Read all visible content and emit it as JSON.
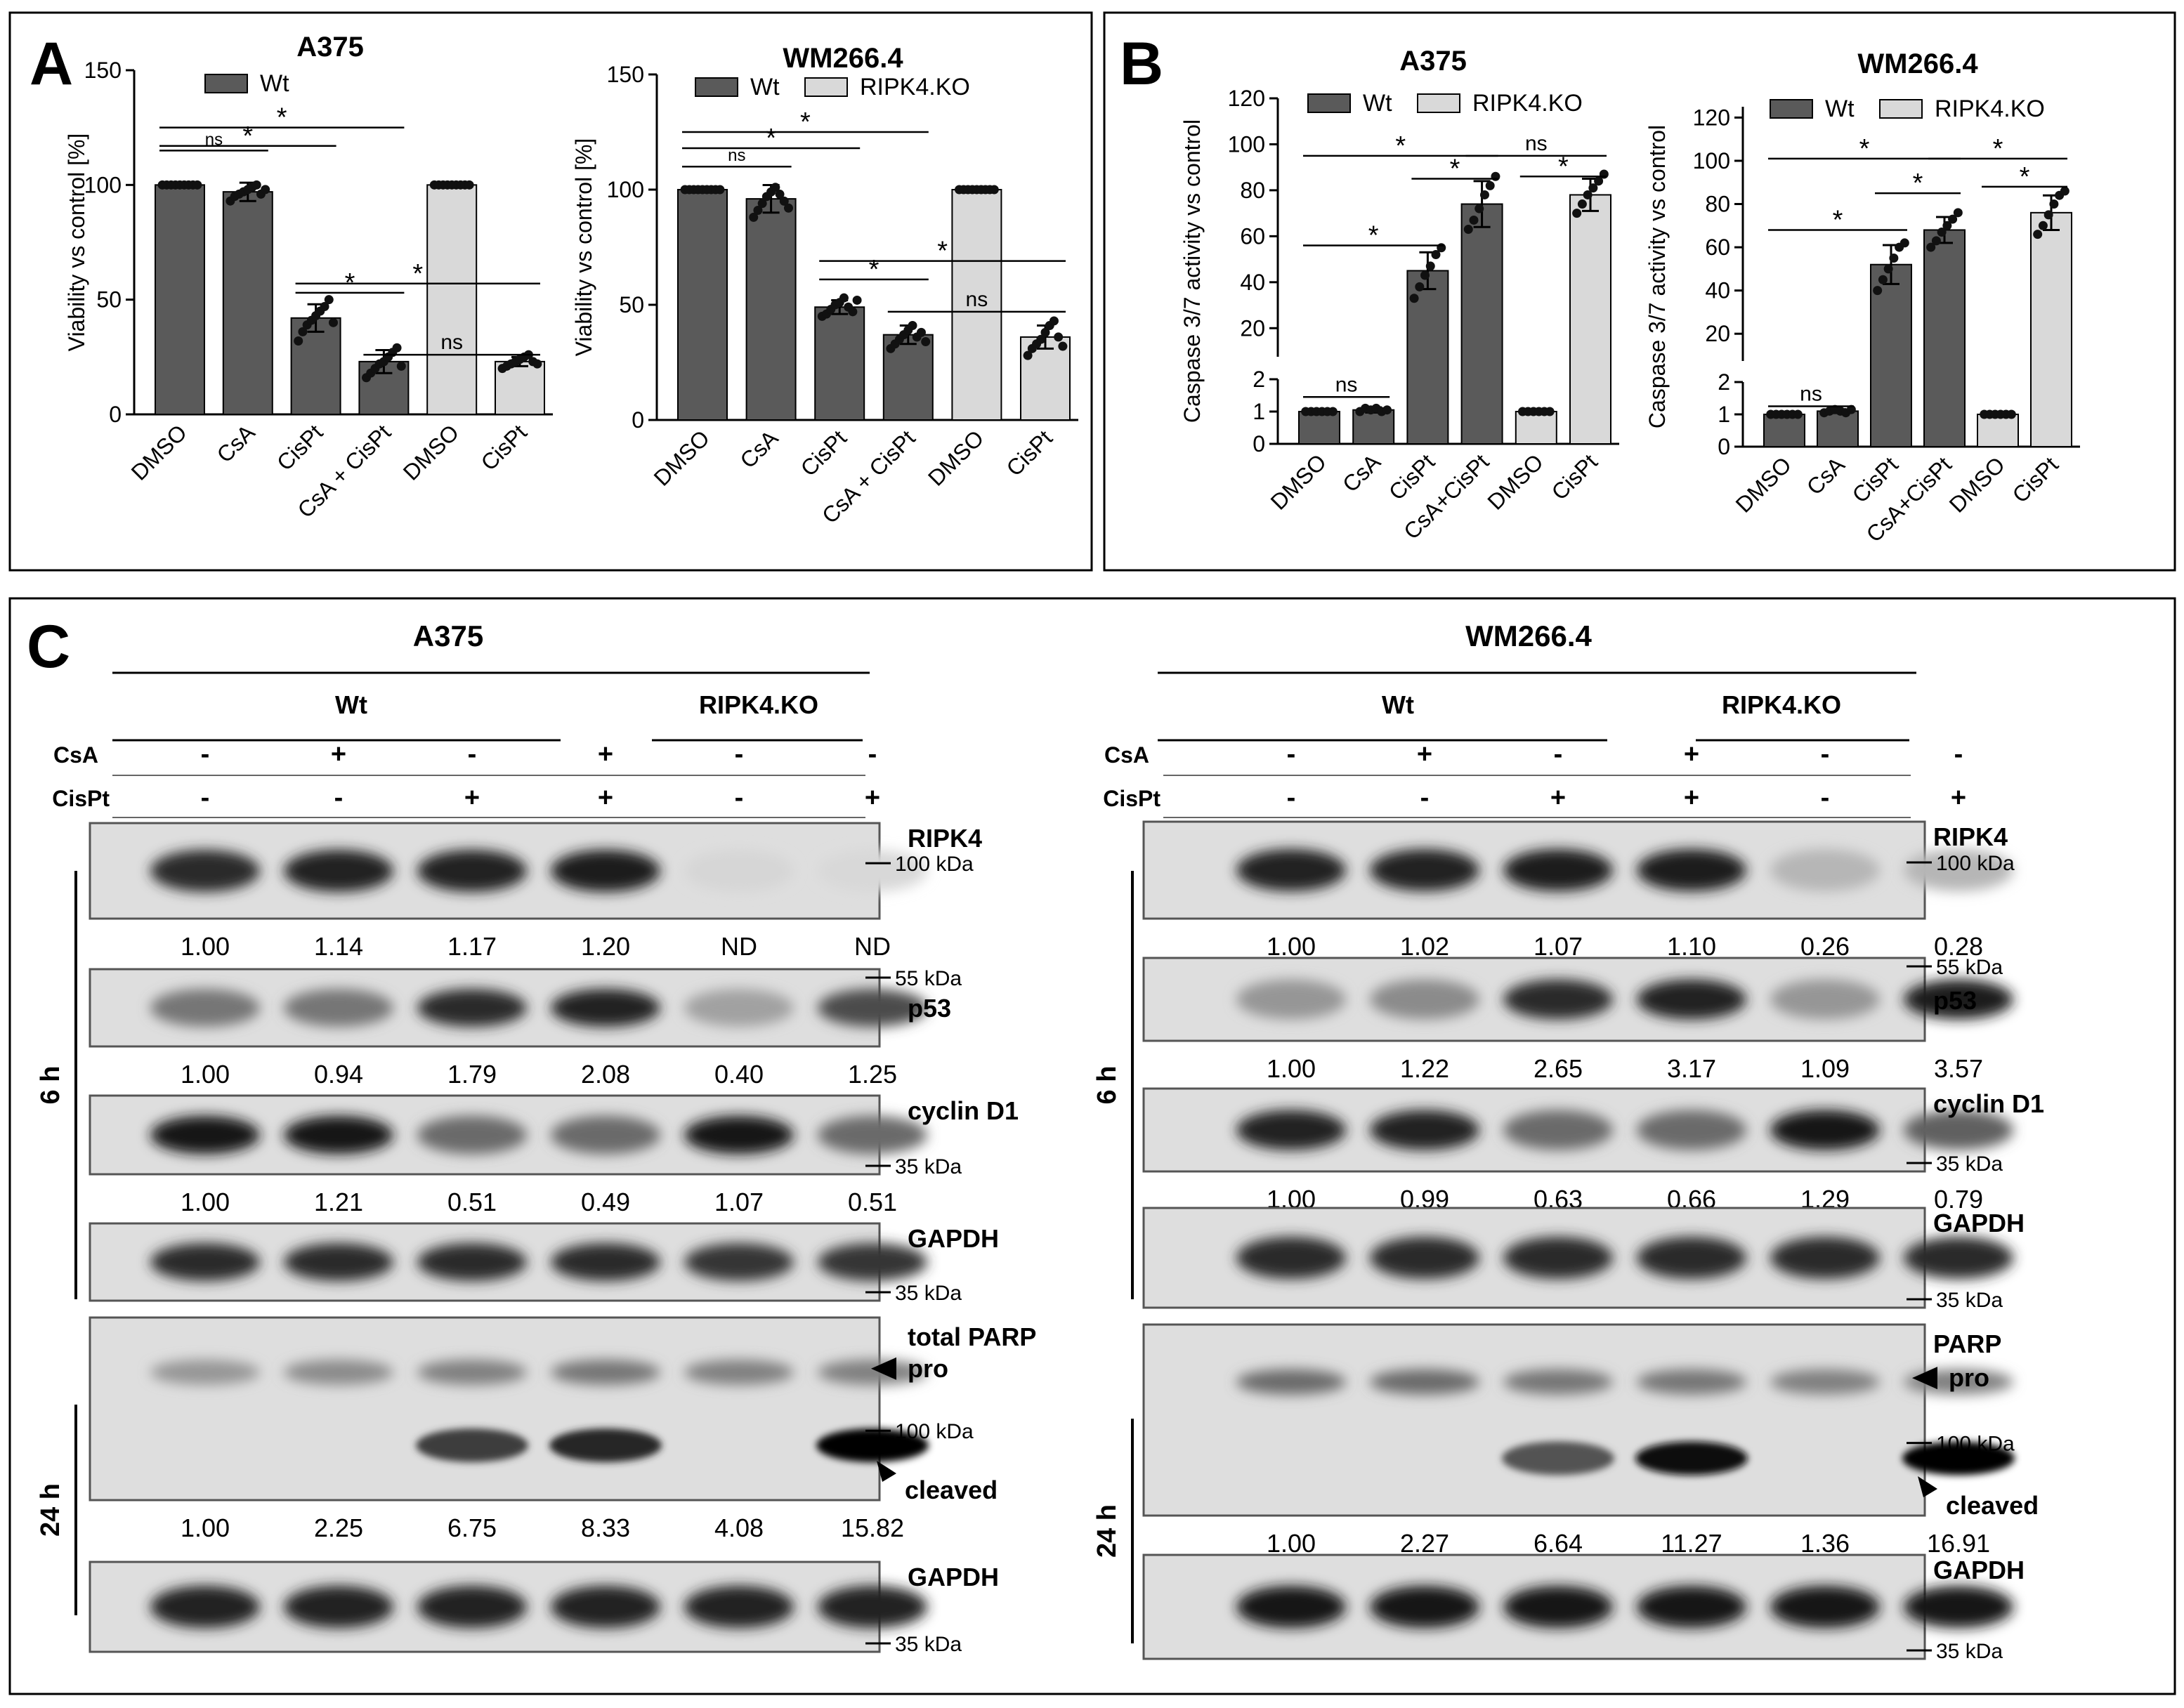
{
  "colors": {
    "wt": "#5a5a5a",
    "ko": "#d9d9d9",
    "dots": "#111111",
    "frame": "#000000",
    "blot_bg": "#dedede"
  },
  "panels": {
    "A": "A",
    "B": "B",
    "C": "C"
  },
  "chart_data": [
    {
      "id": "A1",
      "type": "bar",
      "title": "A375",
      "xlabel": "",
      "ylabel": "Viability vs control [%]",
      "ylim": [
        0,
        150
      ],
      "yticks": [
        0,
        50,
        100,
        150
      ],
      "grid": false,
      "legend_position": "top",
      "legend": [
        {
          "name": "Wt",
          "group": "wt"
        }
      ],
      "categories": [
        "DMSO",
        "CsA",
        "CisPt",
        "CsA + CisPt",
        "DMSO",
        "CisPt"
      ],
      "groups": [
        "wt",
        "wt",
        "wt",
        "wt",
        "ko",
        "ko"
      ],
      "values": [
        100,
        97,
        42,
        23,
        100,
        23
      ],
      "errors": [
        0,
        4,
        6,
        5,
        0,
        2
      ],
      "points": [
        [
          100,
          100,
          100,
          100,
          100,
          100,
          100,
          100,
          100
        ],
        [
          93,
          95,
          96,
          97,
          98,
          99,
          100,
          96,
          98
        ],
        [
          32,
          36,
          39,
          41,
          43,
          45,
          47,
          50,
          40
        ],
        [
          16,
          18,
          20,
          22,
          23,
          25,
          27,
          29,
          21
        ],
        [
          100,
          100,
          100,
          100,
          100,
          100,
          100,
          100,
          100
        ],
        [
          20,
          21,
          22,
          23,
          24,
          25,
          26,
          23,
          22
        ]
      ],
      "significance": [
        {
          "from": 0,
          "to": 1,
          "label": "ns",
          "y": 115
        },
        {
          "from": 0,
          "to": 2,
          "label": "*",
          "y": 117
        },
        {
          "from": 0,
          "to": 3,
          "label": "*",
          "y": 125
        },
        {
          "from": 2,
          "to": 3,
          "label": "*",
          "y": 53
        },
        {
          "from": 2,
          "to": 5,
          "label": "*",
          "y": 57
        },
        {
          "from": 3,
          "to": 5,
          "label": "ns",
          "y": 26
        }
      ]
    },
    {
      "id": "A2",
      "type": "bar",
      "title": "WM266.4",
      "xlabel": "",
      "ylabel": "Viability vs control [%]",
      "ylim": [
        0,
        150
      ],
      "yticks": [
        0,
        50,
        100,
        150
      ],
      "grid": false,
      "legend_position": "top",
      "legend": [
        {
          "name": "Wt",
          "group": "wt"
        },
        {
          "name": "RIPK4.KO",
          "group": "ko"
        }
      ],
      "categories": [
        "DMSO",
        "CsA",
        "CisPt",
        "CsA + CisPt",
        "DMSO",
        "CisPt"
      ],
      "groups": [
        "wt",
        "wt",
        "wt",
        "wt",
        "ko",
        "ko"
      ],
      "values": [
        100,
        96,
        49,
        37,
        100,
        36
      ],
      "errors": [
        0,
        6,
        3,
        4,
        0,
        5
      ],
      "points": [
        [
          100,
          100,
          100,
          100,
          100,
          100,
          100,
          100,
          100
        ],
        [
          88,
          91,
          94,
          97,
          99,
          101,
          98,
          95,
          92
        ],
        [
          45,
          46,
          48,
          50,
          51,
          53,
          49,
          47,
          52
        ],
        [
          31,
          33,
          35,
          37,
          39,
          41,
          36,
          38,
          34
        ],
        [
          100,
          100,
          100,
          100,
          100,
          100,
          100,
          100,
          100
        ],
        [
          28,
          31,
          33,
          35,
          38,
          41,
          43,
          36,
          32
        ]
      ],
      "significance": [
        {
          "from": 0,
          "to": 1,
          "label": "ns",
          "y": 110
        },
        {
          "from": 0,
          "to": 2,
          "label": "*",
          "y": 118
        },
        {
          "from": 0,
          "to": 3,
          "label": "*",
          "y": 125
        },
        {
          "from": 2,
          "to": 3,
          "label": "*",
          "y": 61
        },
        {
          "from": 2,
          "to": 5,
          "label": "*",
          "y": 69
        },
        {
          "from": 3,
          "to": 5,
          "label": "ns",
          "y": 47
        }
      ]
    },
    {
      "id": "B1",
      "type": "bar",
      "title": "A375",
      "xlabel": "",
      "ylabel": "Caspase 3/7 activity vs control",
      "broken_axis": true,
      "lower_ylim": [
        0,
        2
      ],
      "lower_yticks": [
        0,
        1,
        2
      ],
      "upper_ylim": [
        10,
        120
      ],
      "upper_yticks": [
        20,
        40,
        60,
        80,
        100,
        120
      ],
      "grid": false,
      "legend_position": "top",
      "legend": [
        {
          "name": "Wt",
          "group": "wt"
        },
        {
          "name": "RIPK4.KO",
          "group": "ko"
        }
      ],
      "categories": [
        "DMSO",
        "CsA",
        "CisPt",
        "CsA+CisPt",
        "DMSO",
        "CisPt"
      ],
      "groups": [
        "wt",
        "wt",
        "wt",
        "wt",
        "ko",
        "ko"
      ],
      "values": [
        1.0,
        1.05,
        45,
        74,
        1.0,
        78
      ],
      "errors": [
        0.02,
        0.08,
        8,
        10,
        0.02,
        7
      ],
      "points": [
        [
          1,
          1,
          1,
          1,
          1,
          1
        ],
        [
          1.0,
          1.1,
          1.05,
          1.1,
          1.0,
          1.05
        ],
        [
          33,
          38,
          43,
          47,
          52,
          55
        ],
        [
          63,
          67,
          72,
          78,
          82,
          86
        ],
        [
          1,
          1,
          1,
          1,
          1,
          1
        ],
        [
          70,
          74,
          78,
          81,
          84,
          87
        ]
      ],
      "significance": [
        {
          "from": 0,
          "to": 1,
          "label": "ns",
          "y": 1.45
        },
        {
          "from": 0,
          "to": 2,
          "label": "*",
          "y": 56
        },
        {
          "from": 0,
          "to": 3,
          "label": "*",
          "y": 95
        },
        {
          "from": 2,
          "to": 3,
          "label": "*",
          "y": 85
        },
        {
          "from": 3,
          "to": 5,
          "label": "ns",
          "y": 95
        },
        {
          "from": 4,
          "to": 5,
          "label": "*",
          "y": 86
        }
      ]
    },
    {
      "id": "B2",
      "type": "bar",
      "title": "WM266.4",
      "xlabel": "",
      "ylabel": "Caspase 3/7 activity vs control",
      "broken_axis": true,
      "lower_ylim": [
        0,
        2
      ],
      "lower_yticks": [
        0,
        1,
        2
      ],
      "upper_ylim": [
        10,
        125
      ],
      "upper_yticks": [
        20,
        40,
        60,
        80,
        100,
        120
      ],
      "grid": false,
      "legend_position": "top",
      "legend": [
        {
          "name": "Wt",
          "group": "wt"
        },
        {
          "name": "RIPK4.KO",
          "group": "ko"
        }
      ],
      "categories": [
        "DMSO",
        "CsA",
        "CisPt",
        "CsA+CisPt",
        "DMSO",
        "CisPt"
      ],
      "groups": [
        "wt",
        "wt",
        "wt",
        "wt",
        "ko",
        "ko"
      ],
      "values": [
        1.0,
        1.1,
        52,
        68,
        1.0,
        76
      ],
      "errors": [
        0.02,
        0.06,
        9,
        6,
        0.02,
        8
      ],
      "points": [
        [
          1,
          1,
          1,
          1,
          1,
          1
        ],
        [
          1.05,
          1.1,
          1.15,
          1.1,
          1.05,
          1.15
        ],
        [
          40,
          45,
          50,
          55,
          60,
          62
        ],
        [
          60,
          63,
          67,
          70,
          73,
          76
        ],
        [
          1,
          1,
          1,
          1,
          1,
          1
        ],
        [
          66,
          70,
          75,
          80,
          84,
          86
        ]
      ],
      "significance": [
        {
          "from": 0,
          "to": 1,
          "label": "ns",
          "y": 1.25
        },
        {
          "from": 0,
          "to": 2,
          "label": "*",
          "y": 68
        },
        {
          "from": 0,
          "to": 3,
          "label": "*",
          "y": 101
        },
        {
          "from": 2,
          "to": 3,
          "label": "*",
          "y": 85
        },
        {
          "from": 3,
          "to": 5,
          "label": "*",
          "y": 101
        },
        {
          "from": 4,
          "to": 5,
          "label": "*",
          "y": 88
        }
      ]
    }
  ],
  "blots": [
    {
      "id": "C1",
      "title": "A375",
      "wt_label": "Wt",
      "ko_label": "RIPK4.KO",
      "csa_label": "CsA",
      "cispt_label": "CisPt",
      "csa": [
        "-",
        "+",
        "-",
        "+",
        "-",
        "-"
      ],
      "cispt": [
        "-",
        "-",
        "+",
        "+",
        "-",
        "+"
      ],
      "time_labels": [
        "6 h",
        "24 h"
      ],
      "strips": [
        {
          "label": "RIPK4",
          "markers": [
            "100 kDa"
          ],
          "values": [
            "1.00",
            "1.14",
            "1.17",
            "1.20",
            "ND",
            "ND"
          ],
          "intensity": [
            0.85,
            0.9,
            0.88,
            0.92,
            0.05,
            0.04
          ]
        },
        {
          "label": "p53",
          "markers": [
            "55 kDa"
          ],
          "values": [
            "1.00",
            "0.94",
            "1.79",
            "2.08",
            "0.40",
            "1.25"
          ],
          "intensity": [
            0.5,
            0.5,
            0.85,
            0.9,
            0.3,
            0.7
          ]
        },
        {
          "label": "cyclin D1",
          "markers": [
            "35 kDa"
          ],
          "values": [
            "1.00",
            "1.21",
            "0.51",
            "0.49",
            "1.07",
            "0.51"
          ],
          "intensity": [
            0.95,
            0.95,
            0.55,
            0.55,
            0.95,
            0.55
          ]
        },
        {
          "label": "GAPDH",
          "markers": [
            "35 kDa"
          ],
          "values": [],
          "intensity": [
            0.85,
            0.85,
            0.85,
            0.85,
            0.8,
            0.8
          ]
        },
        {
          "label": "total PARP",
          "markers": [
            "100 kDa"
          ],
          "arrows": [
            "pro",
            "cleaved"
          ],
          "values": [
            "1.00",
            "2.25",
            "6.75",
            "8.33",
            "4.08",
            "15.82"
          ],
          "intensity": [
            0.35,
            0.4,
            0.45,
            0.5,
            0.45,
            0.45
          ],
          "cleaved": [
            0.0,
            0.0,
            0.75,
            0.85,
            0.0,
            1.0
          ]
        },
        {
          "label": "GAPDH",
          "markers": [
            "35 kDa"
          ],
          "values": [],
          "intensity": [
            0.9,
            0.9,
            0.9,
            0.9,
            0.9,
            0.9
          ]
        }
      ]
    },
    {
      "id": "C2",
      "title": "WM266.4",
      "wt_label": "Wt",
      "ko_label": "RIPK4.KO",
      "csa_label": "CsA",
      "cispt_label": "CisPt",
      "csa": [
        "-",
        "+",
        "-",
        "+",
        "-",
        "-"
      ],
      "cispt": [
        "-",
        "-",
        "+",
        "+",
        "-",
        "+"
      ],
      "time_labels": [
        "6 h",
        "24 h"
      ],
      "strips": [
        {
          "label": "RIPK4",
          "markers": [
            "100 kDa"
          ],
          "values": [
            "1.00",
            "1.02",
            "1.07",
            "1.10",
            "0.26",
            "0.28"
          ],
          "intensity": [
            0.9,
            0.88,
            0.92,
            0.92,
            0.2,
            0.2
          ]
        },
        {
          "label": "p53",
          "markers": [
            "55 kDa"
          ],
          "values": [
            "1.00",
            "1.22",
            "2.65",
            "3.17",
            "1.09",
            "3.57"
          ],
          "intensity": [
            0.35,
            0.4,
            0.85,
            0.9,
            0.35,
            0.92
          ]
        },
        {
          "label": "cyclin D1",
          "markers": [
            "35 kDa"
          ],
          "values": [
            "1.00",
            "0.99",
            "0.63",
            "0.66",
            "1.29",
            "0.79"
          ],
          "intensity": [
            0.9,
            0.9,
            0.55,
            0.55,
            0.95,
            0.6
          ]
        },
        {
          "label": "GAPDH",
          "markers": [
            "35 kDa"
          ],
          "values": [],
          "intensity": [
            0.85,
            0.85,
            0.85,
            0.85,
            0.85,
            0.85
          ]
        },
        {
          "label": "PARP",
          "markers": [
            "100 kDa"
          ],
          "arrows": [
            "pro",
            "cleaved"
          ],
          "values": [
            "1.00",
            "2.27",
            "6.64",
            "11.27",
            "1.36",
            "16.91"
          ],
          "intensity": [
            0.55,
            0.55,
            0.5,
            0.5,
            0.45,
            0.45
          ],
          "cleaved": [
            0.0,
            0.0,
            0.65,
            0.95,
            0.0,
            1.0
          ]
        },
        {
          "label": "GAPDH",
          "markers": [
            "35 kDa"
          ],
          "values": [],
          "intensity": [
            0.95,
            0.95,
            0.95,
            0.95,
            0.95,
            0.95
          ]
        }
      ]
    }
  ]
}
